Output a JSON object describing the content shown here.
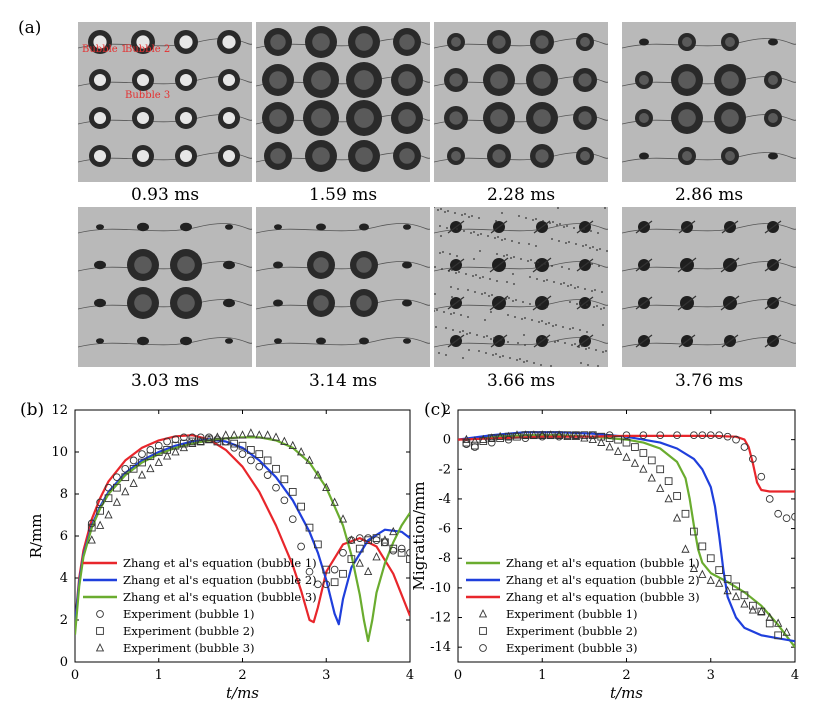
{
  "figure": {
    "panel_a_label": "(a)",
    "panel_b_label": "(b)",
    "panel_c_label": "(c)",
    "bubble_labels": [
      "Bubble 1",
      "Bubble 2",
      "Bubble 3"
    ],
    "frames": [
      {
        "time": "0.93 ms",
        "stage": "early"
      },
      {
        "time": "1.59 ms",
        "stage": "max"
      },
      {
        "time": "2.28 ms",
        "stage": "shrinking"
      },
      {
        "time": "2.86 ms",
        "stage": "edge-collapse"
      },
      {
        "time": "3.03 ms",
        "stage": "center-max"
      },
      {
        "time": "3.14 ms",
        "stage": "center-large"
      },
      {
        "time": "3.66 ms",
        "stage": "collapsed-spray"
      },
      {
        "time": "3.76 ms",
        "stage": "collapsed"
      }
    ]
  },
  "chart_data": [
    {
      "type": "line",
      "panel": "(b)",
      "xlabel": "t/ms",
      "ylabel": "R/mm",
      "xlim": [
        0,
        4
      ],
      "ylim": [
        0,
        12
      ],
      "xticks": [
        "0",
        "1",
        "2",
        "3",
        "4"
      ],
      "yticks": [
        "0",
        "2",
        "4",
        "6",
        "8",
        "10",
        "12"
      ],
      "legend_position": "bottom-left",
      "series": [
        {
          "name": "Zhang et al's equation (bubble 1)",
          "color": "#e8262b",
          "style": "line",
          "x": [
            0,
            0.05,
            0.1,
            0.2,
            0.3,
            0.4,
            0.6,
            0.8,
            1.0,
            1.2,
            1.4,
            1.6,
            1.8,
            2.0,
            2.2,
            2.4,
            2.6,
            2.7,
            2.8,
            2.85,
            2.9,
            3.0,
            3.2,
            3.4,
            3.6,
            3.8,
            4.0
          ],
          "y": [
            1.8,
            4.0,
            5.3,
            6.8,
            7.8,
            8.6,
            9.6,
            10.2,
            10.55,
            10.75,
            10.8,
            10.6,
            10.1,
            9.3,
            8.1,
            6.5,
            4.6,
            3.4,
            2.0,
            1.9,
            2.6,
            4.3,
            5.6,
            5.9,
            5.5,
            4.2,
            2.2
          ]
        },
        {
          "name": "Zhang et al's equation (bubble 2)",
          "color": "#1f3fdc",
          "style": "line",
          "x": [
            0,
            0.05,
            0.1,
            0.2,
            0.3,
            0.4,
            0.6,
            0.8,
            1.0,
            1.2,
            1.4,
            1.6,
            1.8,
            2.0,
            2.2,
            2.4,
            2.6,
            2.8,
            2.9,
            3.0,
            3.1,
            3.15,
            3.2,
            3.3,
            3.5,
            3.7,
            3.9,
            4.0
          ],
          "y": [
            1.8,
            3.8,
            5.1,
            6.5,
            7.4,
            8.1,
            9.0,
            9.6,
            10.0,
            10.3,
            10.5,
            10.6,
            10.5,
            10.2,
            9.6,
            8.8,
            7.7,
            6.2,
            5.2,
            3.9,
            2.3,
            1.8,
            3.0,
            4.5,
            5.8,
            6.3,
            6.2,
            5.9
          ]
        },
        {
          "name": "Zhang et al's equation (bubble 3)",
          "color": "#6aac2f",
          "style": "line",
          "x": [
            0,
            0.05,
            0.1,
            0.2,
            0.3,
            0.4,
            0.6,
            0.8,
            1.0,
            1.2,
            1.4,
            1.6,
            1.8,
            2.0,
            2.2,
            2.4,
            2.6,
            2.8,
            3.0,
            3.2,
            3.3,
            3.4,
            3.45,
            3.5,
            3.55,
            3.6,
            3.7,
            3.8,
            3.9,
            4.0
          ],
          "y": [
            1.3,
            3.6,
            5.0,
            6.4,
            7.3,
            8.0,
            8.9,
            9.5,
            9.9,
            10.2,
            10.4,
            10.55,
            10.65,
            10.7,
            10.7,
            10.55,
            10.2,
            9.5,
            8.3,
            6.5,
            5.1,
            3.2,
            2.0,
            1.0,
            2.0,
            3.3,
            4.7,
            5.7,
            6.5,
            7.1
          ]
        },
        {
          "name": "Experiment (bubble 1)",
          "color": "#333333",
          "style": "circle",
          "x": [
            0.2,
            0.3,
            0.4,
            0.5,
            0.6,
            0.7,
            0.8,
            0.9,
            1.0,
            1.1,
            1.2,
            1.3,
            1.4,
            1.5,
            1.6,
            1.7,
            1.8,
            1.9,
            2.0,
            2.1,
            2.2,
            2.3,
            2.4,
            2.5,
            2.6,
            2.7,
            2.8,
            2.9,
            3.0,
            3.1,
            3.2,
            3.3,
            3.4,
            3.5,
            3.6,
            3.7,
            3.8,
            3.9,
            4.0
          ],
          "y": [
            6.6,
            7.6,
            8.3,
            8.8,
            9.2,
            9.6,
            9.9,
            10.1,
            10.3,
            10.5,
            10.6,
            10.7,
            10.7,
            10.7,
            10.7,
            10.6,
            10.5,
            10.2,
            9.9,
            9.6,
            9.3,
            8.9,
            8.3,
            7.7,
            6.8,
            5.5,
            4.3,
            3.7,
            3.7,
            4.4,
            5.2,
            5.8,
            5.9,
            5.9,
            5.8,
            5.7,
            5.3,
            5.4,
            5.2
          ]
        },
        {
          "name": "Experiment (bubble 2)",
          "color": "#333333",
          "style": "square",
          "x": [
            0.2,
            0.3,
            0.4,
            0.5,
            0.6,
            0.7,
            0.8,
            0.9,
            1.0,
            1.1,
            1.2,
            1.3,
            1.4,
            1.5,
            1.6,
            1.7,
            1.8,
            1.9,
            2.0,
            2.1,
            2.2,
            2.3,
            2.4,
            2.5,
            2.6,
            2.7,
            2.8,
            2.9,
            3.0,
            3.1,
            3.2,
            3.3,
            3.4,
            3.5,
            3.6,
            3.7,
            3.8,
            3.9,
            4.0
          ],
          "y": [
            6.4,
            7.2,
            7.8,
            8.3,
            8.8,
            9.2,
            9.5,
            9.8,
            10.0,
            10.1,
            10.3,
            10.4,
            10.5,
            10.5,
            10.6,
            10.5,
            10.5,
            10.4,
            10.3,
            10.1,
            9.9,
            9.6,
            9.2,
            8.7,
            8.1,
            7.4,
            6.4,
            5.6,
            4.4,
            3.8,
            4.2,
            4.9,
            5.4,
            5.8,
            5.9,
            5.7,
            5.4,
            5.2,
            4.9
          ]
        },
        {
          "name": "Experiment (bubble 3)",
          "color": "#333333",
          "style": "triangle",
          "x": [
            0.2,
            0.3,
            0.4,
            0.5,
            0.6,
            0.7,
            0.8,
            0.9,
            1.0,
            1.1,
            1.2,
            1.3,
            1.4,
            1.5,
            1.6,
            1.7,
            1.8,
            1.9,
            2.0,
            2.1,
            2.2,
            2.3,
            2.4,
            2.5,
            2.6,
            2.7,
            2.8,
            2.9,
            3.0,
            3.1,
            3.2,
            3.3,
            3.4,
            3.5,
            3.6,
            3.7,
            3.8
          ],
          "y": [
            5.8,
            6.5,
            7.0,
            7.6,
            8.1,
            8.5,
            8.9,
            9.2,
            9.5,
            9.8,
            10.0,
            10.2,
            10.4,
            10.5,
            10.6,
            10.7,
            10.8,
            10.8,
            10.8,
            10.9,
            10.8,
            10.8,
            10.7,
            10.5,
            10.3,
            10.0,
            9.6,
            8.9,
            8.3,
            7.6,
            6.8,
            5.8,
            4.7,
            4.3,
            5.0,
            5.8,
            6.2
          ]
        }
      ]
    },
    {
      "type": "line",
      "panel": "(c)",
      "xlabel": "t/ms",
      "ylabel": "Migration/mm",
      "xlim": [
        0,
        4
      ],
      "ylim": [
        -15,
        2
      ],
      "xticks": [
        "0",
        "1",
        "2",
        "3",
        "4"
      ],
      "yticks": [
        "2",
        "0",
        "-2",
        "-4",
        "-6",
        "-8",
        "-10",
        "-12",
        "-14"
      ],
      "legend_position": "bottom-left",
      "series": [
        {
          "name": "Zhang et al's equation (bubble 1)",
          "color": "#6aac2f",
          "style": "line",
          "x": [
            0,
            0.4,
            0.8,
            1.2,
            1.6,
            2.0,
            2.2,
            2.4,
            2.6,
            2.7,
            2.75,
            2.8,
            2.85,
            2.9,
            3.0,
            3.2,
            3.4,
            3.6,
            3.8,
            4.0
          ],
          "y": [
            0,
            0.2,
            0.3,
            0.3,
            0.2,
            0,
            -0.2,
            -0.6,
            -1.5,
            -2.6,
            -4.0,
            -5.8,
            -7.4,
            -8.3,
            -9.0,
            -9.6,
            -10.3,
            -11.2,
            -12.5,
            -14.0
          ]
        },
        {
          "name": "Zhang et al's equation (bubble 2)",
          "color": "#1f3fdc",
          "style": "line",
          "x": [
            0,
            0.4,
            0.8,
            1.0,
            1.2,
            1.6,
            2.0,
            2.4,
            2.6,
            2.8,
            2.9,
            3.0,
            3.05,
            3.1,
            3.15,
            3.2,
            3.3,
            3.4,
            3.6,
            3.8,
            4.0
          ],
          "y": [
            0,
            0.3,
            0.5,
            0.5,
            0.5,
            0.4,
            0.2,
            -0.2,
            -0.6,
            -1.3,
            -2.0,
            -3.2,
            -4.5,
            -6.5,
            -8.8,
            -10.6,
            -12.0,
            -12.7,
            -13.2,
            -13.4,
            -13.6
          ]
        },
        {
          "name": "Zhang et al's equation (bubble 3)",
          "color": "#e8262b",
          "style": "line",
          "x": [
            0,
            0.5,
            1.0,
            1.5,
            2.0,
            2.5,
            3.0,
            3.3,
            3.4,
            3.45,
            3.5,
            3.55,
            3.6,
            3.7,
            3.8,
            4.0
          ],
          "y": [
            0,
            0.1,
            0.2,
            0.2,
            0.25,
            0.25,
            0.25,
            0.2,
            0,
            -0.5,
            -1.6,
            -2.9,
            -3.4,
            -3.5,
            -3.5,
            -3.5
          ]
        },
        {
          "name": "Experiment (bubble 1)",
          "color": "#333333",
          "style": "triangle",
          "x": [
            0.1,
            0.2,
            0.3,
            0.4,
            0.5,
            0.6,
            0.7,
            0.8,
            0.9,
            1.0,
            1.1,
            1.2,
            1.3,
            1.4,
            1.5,
            1.6,
            1.7,
            1.8,
            1.9,
            2.0,
            2.1,
            2.2,
            2.3,
            2.4,
            2.5,
            2.6,
            2.7,
            2.8,
            2.9,
            3.0,
            3.1,
            3.2,
            3.3,
            3.4,
            3.5,
            3.6,
            3.7,
            3.8,
            3.9
          ],
          "y": [
            0,
            -0.1,
            0,
            0.1,
            0.2,
            0.2,
            0.3,
            0.3,
            0.3,
            0.3,
            0.3,
            0.3,
            0.2,
            0.2,
            0.1,
            0,
            -0.2,
            -0.5,
            -0.8,
            -1.2,
            -1.6,
            -2.0,
            -2.6,
            -3.3,
            -4.0,
            -5.3,
            -7.4,
            -8.7,
            -9.1,
            -9.5,
            -9.7,
            -10.2,
            -10.6,
            -11.1,
            -11.5,
            -11.6,
            -12.0,
            -12.4,
            -13.0
          ]
        },
        {
          "name": "Experiment (bubble 2)",
          "color": "#333333",
          "style": "square",
          "x": [
            0.1,
            0.2,
            0.3,
            0.4,
            0.5,
            0.6,
            0.7,
            0.8,
            0.9,
            1.0,
            1.1,
            1.2,
            1.3,
            1.4,
            1.5,
            1.6,
            1.7,
            1.8,
            1.9,
            2.0,
            2.1,
            2.2,
            2.3,
            2.4,
            2.5,
            2.6,
            2.7,
            2.8,
            2.9,
            3.0,
            3.1,
            3.2,
            3.3,
            3.4,
            3.5,
            3.6,
            3.7,
            3.8
          ],
          "y": [
            -0.2,
            -0.4,
            -0.1,
            0.1,
            0.1,
            0.2,
            0.2,
            0.3,
            0.3,
            0.3,
            0.3,
            0.3,
            0.3,
            0.3,
            0.3,
            0.3,
            0.2,
            0.1,
            0,
            -0.2,
            -0.5,
            -0.9,
            -1.4,
            -2.0,
            -2.8,
            -3.8,
            -5.0,
            -6.2,
            -7.2,
            -8.0,
            -8.8,
            -9.4,
            -9.9,
            -10.5,
            -11.2,
            -11.6,
            -12.4,
            -13.2
          ]
        },
        {
          "name": "Experiment (bubble 3)",
          "color": "#333333",
          "style": "circle",
          "x": [
            0.1,
            0.2,
            0.4,
            0.6,
            0.8,
            1.0,
            1.2,
            1.4,
            1.6,
            1.8,
            2.0,
            2.2,
            2.4,
            2.6,
            2.8,
            2.9,
            3.0,
            3.1,
            3.2,
            3.3,
            3.4,
            3.5,
            3.6,
            3.7,
            3.8,
            3.9,
            4.0
          ],
          "y": [
            -0.3,
            -0.5,
            -0.2,
            0,
            0.1,
            0.2,
            0.2,
            0.3,
            0.3,
            0.3,
            0.3,
            0.3,
            0.3,
            0.3,
            0.3,
            0.3,
            0.3,
            0.3,
            0.2,
            0,
            -0.5,
            -1.3,
            -2.5,
            -4.0,
            -5.0,
            -5.3,
            -5.2
          ]
        }
      ]
    }
  ]
}
